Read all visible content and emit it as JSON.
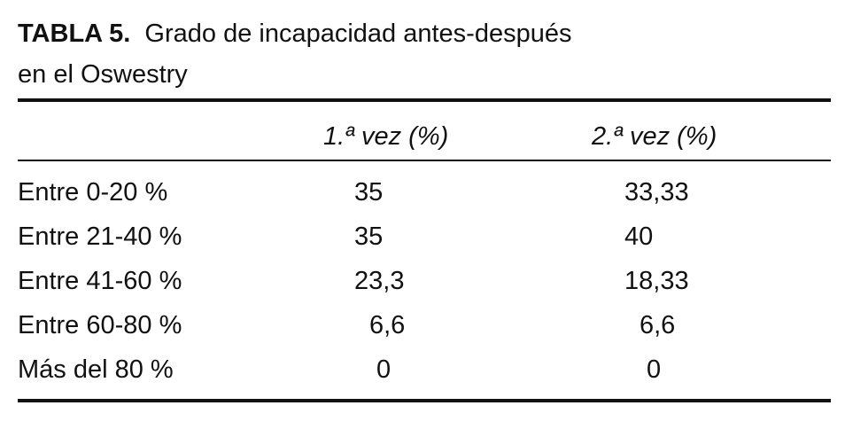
{
  "title": {
    "label": "TABLA 5.",
    "text": "Grado de incapacidad antes-después",
    "text2": "en el Oswestry"
  },
  "table": {
    "columns": [
      "1.ª vez (%)",
      "2.ª vez (%)"
    ],
    "rows": [
      [
        "Entre 0-20 %",
        "35",
        "33,33"
      ],
      [
        "Entre 21-40 %",
        "35",
        "40"
      ],
      [
        "Entre 41-60 %",
        "23,3",
        "18,33"
      ],
      [
        "Entre 60-80 %",
        "6,6",
        "6,6"
      ],
      [
        "Más del 80 %",
        "0",
        "0"
      ]
    ]
  }
}
